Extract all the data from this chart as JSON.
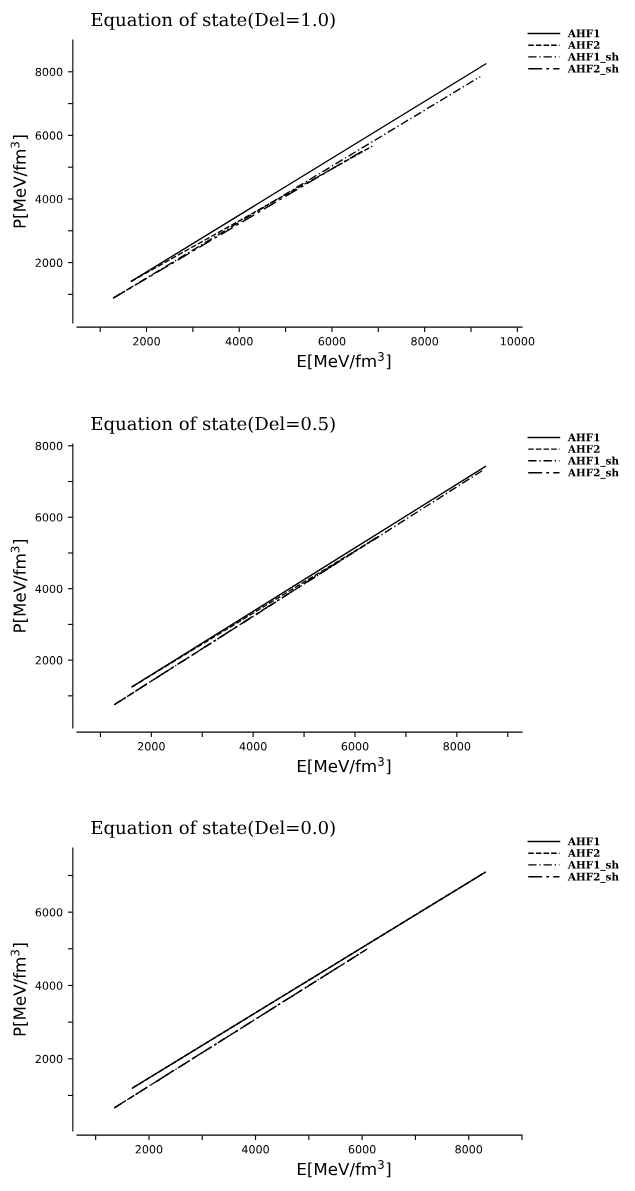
{
  "chart_data": [
    {
      "type": "line",
      "title": "Equation of state(Del=1.0)",
      "xlabel": "E[MeV/fm$^{3}$]",
      "ylabel": "P[MeV/fm$^{3}$]",
      "legend": "top right",
      "grid": false,
      "xlim": [
        500,
        10100
      ],
      "xticks": [
        {
          "value": 1000,
          "label": null
        },
        2000,
        {
          "value": 3000,
          "label": null
        },
        4000,
        {
          "value": 5000,
          "label": null
        },
        6000,
        {
          "value": 7000,
          "label": null
        },
        8000,
        {
          "value": 9000,
          "label": null
        },
        10000
      ],
      "ylim": [
        100,
        9000
      ],
      "yticks": [
        {
          "value": 1000,
          "label": null
        },
        2000,
        {
          "value": 3000,
          "label": null
        },
        4000,
        {
          "value": 5000,
          "label": null
        },
        6000,
        {
          "value": 7000,
          "label": null
        },
        8000
      ],
      "series": [
        {
          "name": "AHF1",
          "color": "#000000",
          "line_style": "solid",
          "x": [
            1670,
            9320
          ],
          "values": [
            1410,
            8250
          ]
        },
        {
          "name": "AHF2",
          "color": "#000000",
          "line_style": "dashed",
          "x": [
            1670,
            6870
          ],
          "values": [
            1410,
            5660
          ]
        },
        {
          "name": "AHF1_sh",
          "color": "#000000",
          "line_style": "dashdot",
          "x": [
            1280,
            9200
          ],
          "values": [
            880,
            7850
          ]
        },
        {
          "name": "AHF2_sh",
          "color": "#000000",
          "line_style": "longdashdot",
          "x": [
            1280,
            6690
          ],
          "values": [
            880,
            5540
          ]
        }
      ]
    },
    {
      "type": "line",
      "title": "Equation of state(Del=0.5)",
      "xlabel": "E[MeV/fm$^{3}$]",
      "ylabel": "P[MeV/fm$^{3}$]",
      "legend": "top right",
      "grid": false,
      "xlim": [
        540,
        9280
      ],
      "xticks": [
        {
          "value": 1000,
          "label": null
        },
        2000,
        {
          "value": 3000,
          "label": null
        },
        4000,
        {
          "value": 5000,
          "label": null
        },
        6000,
        {
          "value": 7000,
          "label": null
        },
        8000,
        {
          "value": 9000,
          "label": null
        }
      ],
      "ylim": [
        100,
        8050
      ],
      "yticks": [
        {
          "value": 1000,
          "label": null
        },
        2000,
        {
          "value": 3000,
          "label": null
        },
        4000,
        {
          "value": 5000,
          "label": null
        },
        6000,
        {
          "value": 7000,
          "label": null
        },
        8000
      ],
      "series": [
        {
          "name": "AHF1",
          "color": "#000000",
          "line_style": "solid",
          "x": [
            1620,
            8560
          ],
          "values": [
            1250,
            7420
          ]
        },
        {
          "name": "AHF2",
          "color": "#000000",
          "line_style": "dashed",
          "x": [
            1620,
            6490
          ],
          "values": [
            1250,
            5480
          ]
        },
        {
          "name": "AHF1_sh",
          "color": "#000000",
          "line_style": "dashdot",
          "x": [
            1270,
            8540
          ],
          "values": [
            750,
            7340
          ]
        },
        {
          "name": "AHF2_sh",
          "color": "#000000",
          "line_style": "longdashdot",
          "x": [
            1270,
            6420
          ],
          "values": [
            750,
            5430
          ]
        }
      ]
    },
    {
      "type": "line",
      "title": "Equation of state(Del=0.0)",
      "xlabel": "E[MeV/fm$^{3}$]",
      "ylabel": "P[MeV/fm$^{3}$]",
      "legend": "top right",
      "grid": false,
      "xlim": [
        650,
        9000
      ],
      "xticks": [
        {
          "value": 1000,
          "label": null
        },
        2000,
        {
          "value": 3000,
          "label": null
        },
        4000,
        {
          "value": 5000,
          "label": null
        },
        6000,
        {
          "value": 7000,
          "label": null
        },
        8000,
        {
          "value": 9000,
          "label": null
        }
      ],
      "ylim": [
        30,
        7750
      ],
      "yticks": [
        {
          "value": 1000,
          "label": null
        },
        2000,
        {
          "value": 3000,
          "label": null
        },
        4000,
        {
          "value": 5000,
          "label": null
        },
        6000,
        {
          "value": 7000,
          "label": null
        }
      ],
      "series": [
        {
          "name": "AHF1",
          "color": "#000000",
          "line_style": "solid",
          "x": [
            1690,
            8310
          ],
          "values": [
            1200,
            7090
          ]
        },
        {
          "name": "AHF2",
          "color": "#000000",
          "line_style": "dashed",
          "x": [
            1690,
            8310
          ],
          "values": [
            1200,
            7090
          ]
        },
        {
          "name": "AHF1_sh",
          "color": "#000000",
          "line_style": "dashdot",
          "x": [
            1350,
            6110
          ],
          "values": [
            660,
            5010
          ]
        },
        {
          "name": "AHF2_sh",
          "color": "#000000",
          "line_style": "longdashdot",
          "x": [
            1350,
            6080
          ],
          "values": [
            660,
            4980
          ]
        }
      ]
    }
  ]
}
